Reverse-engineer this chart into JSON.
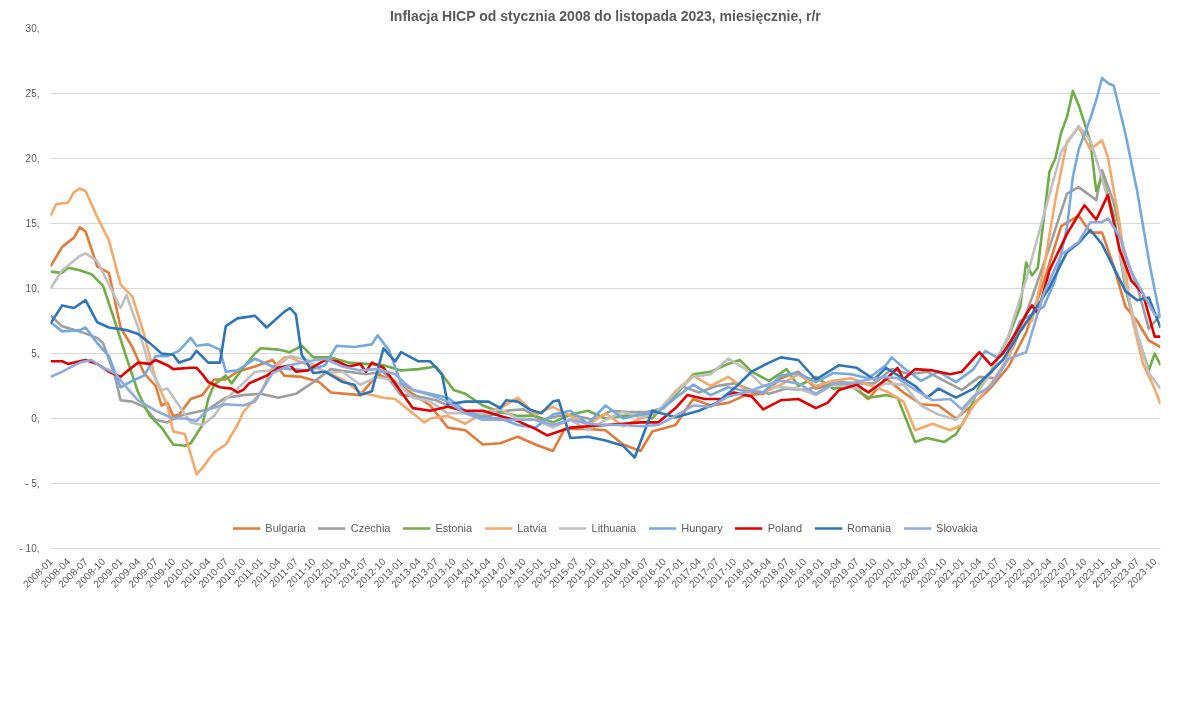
{
  "chart_data": {
    "type": "line",
    "title": "Inflacja HICP od stycznia 2008 do listopada 2023, miesięcznie, r/r",
    "xlim": [
      "2008-01",
      "2023-11"
    ],
    "xticks": [
      "2008-01",
      "2008-04",
      "2008-07",
      "2008-10",
      "2009-01",
      "2009-04",
      "2009-07",
      "2009-10",
      "2010-01",
      "2010-04",
      "2010-07",
      "2010-10",
      "2011-01",
      "2011-04",
      "2011-07",
      "2011-10",
      "2012-01",
      "2012-04",
      "2012-07",
      "2012-10",
      "2013-01",
      "2013-04",
      "2013-07",
      "2013-10",
      "2014-01",
      "2014-04",
      "2014-07",
      "2014-10",
      "2015-01",
      "2015-04",
      "2015-07",
      "2015-10",
      "2016-01",
      "2016-04",
      "2016-07",
      "2016-10",
      "2017-01",
      "2017-04",
      "2017-07",
      "2017-10",
      "2018-01",
      "2018-04",
      "2018-07",
      "2018-10",
      "2019-01",
      "2019-04",
      "2019-07",
      "2019-10",
      "2020-01",
      "2020-04",
      "2020-07",
      "2020-10",
      "2021-01",
      "2021-04",
      "2021-07",
      "2021-10",
      "2022-01",
      "2022-04",
      "2022-07",
      "2022-10",
      "2023-01",
      "2023-04",
      "2023-07",
      "2023-10"
    ],
    "ylim": [
      -10,
      30
    ],
    "yticks": [
      {
        "value": -10,
        "label": "- 10,"
      },
      {
        "value": -5,
        "label": "- 5,"
      },
      {
        "value": 0,
        "label": "0,"
      },
      {
        "value": 5,
        "label": "5,"
      },
      {
        "value": 10,
        "label": "10,"
      },
      {
        "value": 15,
        "label": "15,"
      },
      {
        "value": 20,
        "label": "20,"
      },
      {
        "value": 25,
        "label": "25,"
      },
      {
        "value": 30,
        "label": "30,"
      }
    ],
    "grid": "y",
    "legend": "bottom",
    "marker": "none",
    "line_style": "solid",
    "series": [
      {
        "name": "Bulgaria",
        "color": "#e07b39",
        "x": [
          "2008-01",
          "2008-03",
          "2008-05",
          "2008-06",
          "2008-07",
          "2008-09",
          "2008-11",
          "2009-01",
          "2009-03",
          "2009-05",
          "2009-07",
          "2009-08",
          "2009-09",
          "2009-10",
          "2009-11",
          "2010-01",
          "2010-03",
          "2010-05",
          "2010-07",
          "2010-09",
          "2010-12",
          "2011-03",
          "2011-05",
          "2011-08",
          "2011-11",
          "2012-01",
          "2012-06",
          "2012-09",
          "2012-12",
          "2013-03",
          "2013-06",
          "2013-09",
          "2013-12",
          "2014-03",
          "2014-06",
          "2014-09",
          "2014-12",
          "2015-03",
          "2015-05",
          "2015-09",
          "2015-12",
          "2016-03",
          "2016-06",
          "2016-08",
          "2016-12",
          "2017-03",
          "2017-06",
          "2017-09",
          "2017-12",
          "2018-03",
          "2018-06",
          "2018-09",
          "2018-12",
          "2019-03",
          "2019-06",
          "2019-09",
          "2019-12",
          "2020-03",
          "2020-06",
          "2020-09",
          "2020-12",
          "2021-03",
          "2021-06",
          "2021-09",
          "2021-12",
          "2022-03",
          "2022-06",
          "2022-09",
          "2022-11",
          "2023-01",
          "2023-03",
          "2023-05",
          "2023-07",
          "2023-09",
          "2023-11"
        ],
        "values": [
          11.7,
          13.2,
          13.9,
          14.7,
          14.4,
          11.7,
          11.2,
          7.0,
          5.5,
          3.5,
          2.5,
          1.0,
          1.2,
          0.2,
          0.3,
          1.5,
          1.8,
          3.0,
          3.0,
          3.6,
          4.0,
          4.5,
          3.3,
          3.2,
          2.8,
          2.0,
          1.8,
          3.4,
          2.8,
          1.9,
          1.0,
          -0.7,
          -0.9,
          -2.0,
          -1.9,
          -1.4,
          -2.0,
          -2.5,
          -0.8,
          -0.8,
          -0.9,
          -2.0,
          -2.5,
          -1.0,
          -0.5,
          1.5,
          1.0,
          1.2,
          1.8,
          1.9,
          3.1,
          3.6,
          2.3,
          2.6,
          2.6,
          1.5,
          3.1,
          2.0,
          1.1,
          1.0,
          0.0,
          1.1,
          2.4,
          4.0,
          6.6,
          10.5,
          14.8,
          15.6,
          14.3,
          14.3,
          11.7,
          8.6,
          7.5,
          6.0,
          5.5
        ]
      },
      {
        "name": "Czechia",
        "color": "#9e9e9e",
        "x": [
          "2008-01",
          "2008-03",
          "2008-06",
          "2008-09",
          "2008-10",
          "2008-12",
          "2009-01",
          "2009-03",
          "2009-05",
          "2009-07",
          "2009-09",
          "2009-11",
          "2010-01",
          "2010-04",
          "2010-07",
          "2010-10",
          "2011-01",
          "2011-04",
          "2011-07",
          "2011-10",
          "2012-01",
          "2012-04",
          "2012-07",
          "2012-10",
          "2013-01",
          "2013-04",
          "2013-07",
          "2013-10",
          "2014-01",
          "2014-04",
          "2014-07",
          "2014-10",
          "2015-01",
          "2015-04",
          "2015-07",
          "2015-10",
          "2016-01",
          "2016-04",
          "2016-07",
          "2016-10",
          "2017-01",
          "2017-04",
          "2017-07",
          "2017-10",
          "2018-01",
          "2018-04",
          "2018-07",
          "2018-10",
          "2019-01",
          "2019-04",
          "2019-07",
          "2019-10",
          "2020-01",
          "2020-04",
          "2020-07",
          "2020-10",
          "2021-01",
          "2021-04",
          "2021-07",
          "2021-10",
          "2022-01",
          "2022-04",
          "2022-07",
          "2022-09",
          "2022-12",
          "2023-01",
          "2023-03",
          "2023-05",
          "2023-07",
          "2023-09",
          "2023-11"
        ],
        "values": [
          7.9,
          7.1,
          6.7,
          6.2,
          5.8,
          3.3,
          1.4,
          1.3,
          0.9,
          -0.1,
          -0.3,
          0.2,
          0.4,
          0.7,
          1.6,
          1.8,
          1.9,
          1.6,
          1.9,
          2.8,
          3.8,
          3.6,
          3.4,
          3.6,
          1.8,
          1.7,
          1.4,
          0.8,
          0.3,
          0.2,
          0.6,
          0.7,
          -0.1,
          0.2,
          0.2,
          -0.1,
          0.6,
          0.5,
          0.5,
          0.8,
          2.5,
          2.0,
          2.5,
          2.7,
          2.2,
          1.9,
          2.3,
          2.2,
          2.5,
          2.8,
          2.7,
          2.7,
          3.8,
          3.4,
          3.6,
          2.9,
          2.2,
          3.2,
          3.1,
          5.7,
          9.3,
          13.2,
          17.3,
          17.8,
          16.8,
          19.1,
          16.6,
          12.4,
          10.2,
          6.9,
          8.0
        ]
      },
      {
        "name": "Estonia",
        "color": "#70ad47",
        "x": [
          "2008-01",
          "2008-03",
          "2008-04",
          "2008-06",
          "2008-08",
          "2008-10",
          "2008-12",
          "2009-02",
          "2009-04",
          "2009-06",
          "2009-08",
          "2009-10",
          "2009-12",
          "2010-01",
          "2010-03",
          "2010-04",
          "2010-05",
          "2010-07",
          "2010-08",
          "2010-10",
          "2010-12",
          "2011-01",
          "2011-04",
          "2011-06",
          "2011-08",
          "2011-10",
          "2012-01",
          "2012-04",
          "2012-07",
          "2012-10",
          "2013-01",
          "2013-04",
          "2013-07",
          "2013-10",
          "2013-12",
          "2014-03",
          "2014-06",
          "2014-09",
          "2014-12",
          "2015-03",
          "2015-06",
          "2015-09",
          "2015-12",
          "2016-03",
          "2016-06",
          "2016-08",
          "2016-10",
          "2016-12",
          "2017-03",
          "2017-06",
          "2017-09",
          "2017-11",
          "2018-01",
          "2018-04",
          "2018-07",
          "2018-09",
          "2018-12",
          "2019-03",
          "2019-06",
          "2019-09",
          "2019-12",
          "2020-02",
          "2020-05",
          "2020-07",
          "2020-10",
          "2020-12",
          "2021-02",
          "2021-04",
          "2021-06",
          "2021-09",
          "2021-11",
          "2021-12",
          "2022-01",
          "2022-02",
          "2022-04",
          "2022-05",
          "2022-06",
          "2022-07",
          "2022-08",
          "2022-09",
          "2022-11",
          "2022-12",
          "2023-01",
          "2023-03",
          "2023-05",
          "2023-07",
          "2023-09",
          "2023-10",
          "2023-11"
        ],
        "values": [
          11.3,
          11.2,
          11.6,
          11.4,
          11.1,
          10.2,
          7.5,
          4.7,
          2.0,
          0.2,
          -0.7,
          -2.0,
          -2.1,
          -1.9,
          -0.5,
          1.5,
          2.6,
          3.3,
          2.7,
          3.9,
          5.0,
          5.4,
          5.3,
          5.1,
          5.6,
          4.7,
          4.7,
          4.3,
          4.2,
          4.1,
          3.7,
          3.8,
          4.0,
          2.2,
          1.9,
          1.0,
          0.5,
          0.2,
          0.2,
          -0.3,
          0.3,
          0.6,
          0.0,
          0.2,
          0.3,
          0.0,
          1.0,
          1.8,
          3.4,
          3.6,
          4.2,
          4.5,
          3.6,
          2.9,
          3.8,
          2.5,
          3.2,
          2.3,
          2.5,
          1.6,
          1.8,
          1.6,
          -1.8,
          -1.5,
          -1.8,
          -1.2,
          0.3,
          2.5,
          3.6,
          6.3,
          8.6,
          12.0,
          11.0,
          11.6,
          19.0,
          20.0,
          22.0,
          23.2,
          25.2,
          24.1,
          21.3,
          17.5,
          18.6,
          15.6,
          10.0,
          6.5,
          3.7,
          5.0,
          4.1
        ]
      },
      {
        "name": "Latvia",
        "color": "#f4a86a",
        "x": [
          "2008-01",
          "2008-02",
          "2008-04",
          "2008-05",
          "2008-06",
          "2008-07",
          "2008-09",
          "2008-11",
          "2009-01",
          "2009-03",
          "2009-05",
          "2009-07",
          "2009-09",
          "2009-10",
          "2009-12",
          "2010-02",
          "2010-03",
          "2010-05",
          "2010-07",
          "2010-09",
          "2010-10",
          "2011-01",
          "2011-03",
          "2011-05",
          "2011-06",
          "2011-08",
          "2011-10",
          "2011-12",
          "2012-03",
          "2012-06",
          "2012-08",
          "2012-10",
          "2012-12",
          "2013-03",
          "2013-05",
          "2013-06",
          "2013-09",
          "2013-12",
          "2014-03",
          "2014-06",
          "2014-09",
          "2014-12",
          "2015-03",
          "2015-06",
          "2015-09",
          "2015-12",
          "2016-03",
          "2016-06",
          "2016-09",
          "2016-12",
          "2017-03",
          "2017-06",
          "2017-09",
          "2017-12",
          "2018-03",
          "2018-06",
          "2018-09",
          "2018-12",
          "2019-03",
          "2019-06",
          "2019-09",
          "2019-12",
          "2020-03",
          "2020-05",
          "2020-08",
          "2020-11",
          "2021-01",
          "2021-03",
          "2021-06",
          "2021-09",
          "2021-11",
          "2022-01",
          "2022-03",
          "2022-05",
          "2022-07",
          "2022-09",
          "2022-11",
          "2023-01",
          "2023-02",
          "2023-04",
          "2023-06",
          "2023-08",
          "2023-10",
          "2023-11"
        ],
        "values": [
          15.6,
          16.5,
          16.6,
          17.4,
          17.7,
          17.5,
          15.5,
          13.7,
          10.3,
          9.4,
          6.5,
          3.0,
          1.0,
          -1.0,
          -1.2,
          -4.3,
          -3.8,
          -2.6,
          -2.0,
          -0.5,
          0.5,
          2.0,
          3.9,
          4.7,
          4.7,
          4.3,
          4.0,
          3.6,
          3.0,
          2.0,
          1.8,
          1.6,
          1.5,
          0.4,
          -0.3,
          0.0,
          0.2,
          -0.4,
          0.4,
          0.8,
          1.6,
          0.3,
          0.9,
          0.2,
          -0.5,
          0.4,
          -0.6,
          0.0,
          0.5,
          2.1,
          3.3,
          2.5,
          3.2,
          2.2,
          2.0,
          2.6,
          3.4,
          2.5,
          2.9,
          3.1,
          2.6,
          2.1,
          1.3,
          -0.9,
          -0.4,
          -0.9,
          -0.5,
          1.0,
          2.7,
          4.7,
          7.4,
          7.5,
          11.5,
          16.8,
          21.3,
          22.4,
          20.7,
          21.4,
          20.1,
          15.0,
          8.0,
          4.2,
          2.3,
          1.1
        ]
      },
      {
        "name": "Lithuania",
        "color": "#c0c0c0",
        "x": [
          "2008-01",
          "2008-03",
          "2008-06",
          "2008-07",
          "2008-09",
          "2008-11",
          "2009-01",
          "2009-02",
          "2009-04",
          "2009-06",
          "2009-08",
          "2009-09",
          "2009-11",
          "2010-01",
          "2010-03",
          "2010-05",
          "2010-07",
          "2010-09",
          "2010-12",
          "2011-03",
          "2011-06",
          "2011-09",
          "2011-12",
          "2012-03",
          "2012-06",
          "2012-09",
          "2012-12",
          "2013-03",
          "2013-06",
          "2013-09",
          "2013-12",
          "2014-03",
          "2014-06",
          "2014-09",
          "2014-12",
          "2015-03",
          "2015-06",
          "2015-09",
          "2015-12",
          "2016-03",
          "2016-06",
          "2016-09",
          "2016-12",
          "2017-03",
          "2017-06",
          "2017-09",
          "2017-12",
          "2018-03",
          "2018-06",
          "2018-09",
          "2018-12",
          "2019-03",
          "2019-06",
          "2019-09",
          "2019-12",
          "2020-03",
          "2020-06",
          "2020-09",
          "2020-12",
          "2021-03",
          "2021-06",
          "2021-09",
          "2021-12",
          "2022-03",
          "2022-06",
          "2022-09",
          "2022-11",
          "2023-01",
          "2023-03",
          "2023-05",
          "2023-07",
          "2023-09",
          "2023-11"
        ],
        "values": [
          10.0,
          11.4,
          12.5,
          12.7,
          12.1,
          10.3,
          8.5,
          9.5,
          7.0,
          3.9,
          2.2,
          2.3,
          1.0,
          -0.3,
          -0.5,
          0.2,
          1.5,
          2.3,
          3.6,
          3.7,
          4.8,
          4.5,
          3.5,
          3.6,
          2.6,
          3.2,
          2.9,
          1.6,
          1.3,
          0.4,
          0.4,
          0.4,
          0.7,
          0.0,
          -0.1,
          -0.7,
          -0.1,
          -0.9,
          -0.1,
          0.5,
          0.1,
          0.6,
          2.0,
          3.2,
          3.4,
          4.6,
          3.8,
          2.5,
          2.4,
          2.3,
          1.8,
          2.6,
          2.4,
          2.1,
          2.7,
          2.6,
          1.0,
          0.3,
          -0.1,
          1.6,
          3.5,
          6.4,
          10.7,
          15.6,
          20.5,
          22.5,
          21.4,
          18.5,
          15.2,
          10.4,
          6.6,
          3.5,
          2.3
        ]
      },
      {
        "name": "Hungary",
        "color": "#75a9db",
        "x": [
          "2008-01",
          "2008-03",
          "2008-06",
          "2008-07",
          "2008-09",
          "2008-11",
          "2009-01",
          "2009-03",
          "2009-05",
          "2009-07",
          "2009-09",
          "2009-11",
          "2010-01",
          "2010-02",
          "2010-04",
          "2010-06",
          "2010-07",
          "2010-09",
          "2010-12",
          "2011-03",
          "2011-06",
          "2011-09",
          "2011-12",
          "2012-02",
          "2012-05",
          "2012-08",
          "2012-09",
          "2012-11",
          "2013-01",
          "2013-03",
          "2013-06",
          "2013-09",
          "2013-12",
          "2014-03",
          "2014-06",
          "2014-09",
          "2014-12",
          "2015-03",
          "2015-06",
          "2015-09",
          "2015-12",
          "2016-03",
          "2016-06",
          "2016-09",
          "2016-12",
          "2017-03",
          "2017-06",
          "2017-09",
          "2017-12",
          "2018-03",
          "2018-06",
          "2018-09",
          "2018-12",
          "2019-03",
          "2019-06",
          "2019-09",
          "2019-12",
          "2020-01",
          "2020-03",
          "2020-06",
          "2020-09",
          "2020-12",
          "2021-03",
          "2021-05",
          "2021-07",
          "2021-09",
          "2021-11",
          "2022-01",
          "2022-03",
          "2022-05",
          "2022-07",
          "2022-08",
          "2022-09",
          "2022-11",
          "2022-12",
          "2023-01",
          "2023-02",
          "2023-03",
          "2023-05",
          "2023-07",
          "2023-09",
          "2023-10",
          "2023-11"
        ],
        "values": [
          7.4,
          6.7,
          6.8,
          7.0,
          5.8,
          4.8,
          2.4,
          2.9,
          3.3,
          4.8,
          4.8,
          5.2,
          6.2,
          5.6,
          5.7,
          5.3,
          3.6,
          3.7,
          4.6,
          4.0,
          3.8,
          3.7,
          4.1,
          5.6,
          5.5,
          5.7,
          6.4,
          5.2,
          2.7,
          2.2,
          1.9,
          1.6,
          0.6,
          0.1,
          0.0,
          -0.5,
          -0.7,
          0.3,
          0.6,
          -0.4,
          1.0,
          0.0,
          0.3,
          0.5,
          1.6,
          2.6,
          1.8,
          2.4,
          2.1,
          2.0,
          3.3,
          3.5,
          2.8,
          3.5,
          3.4,
          3.1,
          4.1,
          4.7,
          3.9,
          2.9,
          3.6,
          2.8,
          3.8,
          5.2,
          4.7,
          5.5,
          7.5,
          8.0,
          8.6,
          10.7,
          14.7,
          18.6,
          20.7,
          23.1,
          24.5,
          26.2,
          25.8,
          25.6,
          21.9,
          17.5,
          12.2,
          9.9,
          7.7
        ]
      },
      {
        "name": "Poland",
        "color": "#e00000",
        "x": [
          "2008-01",
          "2008-03",
          "2008-04",
          "2008-06",
          "2008-07",
          "2008-09",
          "2008-11",
          "2009-01",
          "2009-02",
          "2009-04",
          "2009-06",
          "2009-07",
          "2009-09",
          "2009-10",
          "2010-01",
          "2010-02",
          "2010-03",
          "2010-04",
          "2010-06",
          "2010-08",
          "2010-09",
          "2010-10",
          "2010-11",
          "2010-12",
          "2011-02",
          "2011-04",
          "2011-06",
          "2011-07",
          "2011-09",
          "2011-12",
          "2012-02",
          "2012-04",
          "2012-06",
          "2012-07",
          "2012-08",
          "2012-10",
          "2012-12",
          "2013-03",
          "2013-06",
          "2013-09",
          "2013-12",
          "2014-03",
          "2014-06",
          "2014-09",
          "2014-12",
          "2015-02",
          "2015-06",
          "2015-09",
          "2015-12",
          "2016-03",
          "2016-06",
          "2016-09",
          "2016-12",
          "2017-02",
          "2017-05",
          "2017-08",
          "2017-10",
          "2018-01",
          "2018-03",
          "2018-06",
          "2018-09",
          "2018-12",
          "2019-02",
          "2019-04",
          "2019-07",
          "2019-09",
          "2019-12",
          "2020-02",
          "2020-03",
          "2020-05",
          "2020-08",
          "2020-11",
          "2021-01",
          "2021-04",
          "2021-06",
          "2021-08",
          "2021-10",
          "2021-12",
          "2022-01",
          "2022-02",
          "2022-04",
          "2022-07",
          "2022-09",
          "2022-10",
          "2022-12",
          "2023-02",
          "2023-04",
          "2023-06",
          "2023-08",
          "2023-10",
          "2023-11"
        ],
        "values": [
          4.4,
          4.4,
          4.2,
          4.4,
          4.5,
          4.2,
          3.6,
          3.2,
          3.6,
          4.3,
          4.2,
          4.5,
          4.1,
          3.8,
          3.9,
          3.9,
          3.4,
          2.8,
          2.4,
          2.3,
          2.0,
          2.2,
          2.7,
          2.9,
          3.3,
          3.9,
          4.1,
          3.6,
          3.7,
          4.5,
          4.4,
          4.0,
          4.2,
          3.6,
          4.3,
          3.9,
          2.7,
          0.8,
          0.6,
          0.9,
          0.6,
          0.6,
          0.2,
          -0.2,
          -0.8,
          -1.3,
          -0.7,
          -0.6,
          -0.5,
          -0.4,
          -0.3,
          -0.3,
          0.8,
          1.8,
          1.5,
          1.5,
          2.0,
          1.7,
          0.7,
          1.4,
          1.5,
          0.8,
          1.2,
          2.2,
          2.6,
          2.0,
          3.0,
          3.9,
          3.0,
          3.8,
          3.7,
          3.4,
          3.6,
          5.1,
          4.1,
          5.0,
          6.4,
          8.0,
          8.7,
          8.1,
          11.4,
          14.2,
          15.7,
          16.4,
          15.3,
          17.2,
          13.0,
          10.6,
          9.6,
          6.3,
          6.3
        ]
      },
      {
        "name": "Romania",
        "color": "#2e75b6",
        "x": [
          "2008-01",
          "2008-03",
          "2008-05",
          "2008-07",
          "2008-09",
          "2008-11",
          "2009-02",
          "2009-04",
          "2009-06",
          "2009-08",
          "2009-10",
          "2009-11",
          "2010-01",
          "2010-02",
          "2010-04",
          "2010-06",
          "2010-07",
          "2010-09",
          "2010-12",
          "2011-02",
          "2011-05",
          "2011-06",
          "2011-07",
          "2011-08",
          "2011-10",
          "2011-12",
          "2012-03",
          "2012-05",
          "2012-06",
          "2012-08",
          "2012-10",
          "2012-12",
          "2013-01",
          "2013-04",
          "2013-06",
          "2013-08",
          "2013-09",
          "2013-12",
          "2014-04",
          "2014-06",
          "2014-07",
          "2014-09",
          "2014-11",
          "2015-01",
          "2015-03",
          "2015-04",
          "2015-06",
          "2015-09",
          "2015-12",
          "2016-03",
          "2016-05",
          "2016-08",
          "2016-12",
          "2017-04",
          "2017-07",
          "2017-10",
          "2018-01",
          "2018-04",
          "2018-06",
          "2018-09",
          "2018-12",
          "2019-04",
          "2019-07",
          "2019-10",
          "2019-12",
          "2020-05",
          "2020-07",
          "2020-09",
          "2020-12",
          "2021-03",
          "2021-06",
          "2021-08",
          "2021-11",
          "2022-01",
          "2022-04",
          "2022-07",
          "2022-09",
          "2022-11",
          "2023-01",
          "2023-03",
          "2023-05",
          "2023-07",
          "2023-09",
          "2023-11"
        ],
        "values": [
          7.3,
          8.7,
          8.5,
          9.1,
          7.4,
          7.0,
          6.8,
          6.5,
          5.8,
          5.0,
          4.9,
          4.3,
          4.6,
          5.2,
          4.3,
          4.3,
          7.1,
          7.7,
          7.9,
          7.0,
          8.2,
          8.5,
          8.0,
          4.9,
          3.5,
          3.6,
          2.8,
          2.6,
          1.8,
          2.1,
          5.4,
          4.4,
          5.1,
          4.4,
          4.4,
          3.4,
          1.1,
          1.3,
          1.3,
          0.8,
          1.4,
          1.3,
          0.7,
          0.4,
          1.3,
          1.4,
          -1.5,
          -1.4,
          -1.7,
          -2.1,
          -3.0,
          0.6,
          0.1,
          0.6,
          1.2,
          2.3,
          3.6,
          4.3,
          4.7,
          4.5,
          3.0,
          4.1,
          3.9,
          3.0,
          3.9,
          2.5,
          1.6,
          2.3,
          1.6,
          2.3,
          3.6,
          4.5,
          6.7,
          8.0,
          10.1,
          12.8,
          13.5,
          14.5,
          13.4,
          11.6,
          9.8,
          9.1,
          9.3,
          7.0
        ]
      },
      {
        "name": "Slovakia",
        "color": "#8faadc",
        "x": [
          "2008-01",
          "2008-03",
          "2008-06",
          "2008-08",
          "2008-10",
          "2008-12",
          "2009-02",
          "2009-04",
          "2009-07",
          "2009-10",
          "2009-12",
          "2010-02",
          "2010-04",
          "2010-07",
          "2010-10",
          "2010-12",
          "2011-03",
          "2011-06",
          "2011-09",
          "2011-12",
          "2012-03",
          "2012-06",
          "2012-09",
          "2012-12",
          "2013-03",
          "2013-06",
          "2013-09",
          "2013-12",
          "2014-03",
          "2014-06",
          "2014-09",
          "2014-12",
          "2015-03",
          "2015-06",
          "2015-09",
          "2015-12",
          "2016-03",
          "2016-06",
          "2016-09",
          "2016-12",
          "2017-03",
          "2017-06",
          "2017-09",
          "2017-12",
          "2018-03",
          "2018-06",
          "2018-09",
          "2018-12",
          "2019-03",
          "2019-06",
          "2019-09",
          "2019-12",
          "2020-02",
          "2020-05",
          "2020-08",
          "2020-11",
          "2021-01",
          "2021-03",
          "2021-06",
          "2021-09",
          "2021-12",
          "2022-03",
          "2022-06",
          "2022-09",
          "2022-11",
          "2023-01",
          "2023-02",
          "2023-04",
          "2023-06",
          "2023-08",
          "2023-10",
          "2023-11"
        ],
        "values": [
          3.2,
          3.6,
          4.3,
          4.5,
          3.9,
          3.5,
          2.4,
          1.4,
          0.6,
          0.0,
          0.0,
          -0.2,
          0.7,
          1.1,
          1.0,
          1.3,
          3.5,
          4.1,
          4.4,
          4.6,
          4.0,
          3.7,
          3.8,
          3.4,
          2.2,
          1.8,
          1.3,
          0.4,
          -0.1,
          -0.1,
          -0.1,
          -0.1,
          -0.5,
          -0.1,
          -0.4,
          -0.5,
          -0.5,
          -0.6,
          -0.5,
          0.2,
          1.0,
          0.9,
          1.7,
          2.0,
          2.5,
          2.9,
          2.7,
          1.9,
          2.7,
          2.7,
          3.0,
          3.2,
          3.1,
          2.2,
          1.4,
          1.5,
          0.7,
          1.7,
          2.5,
          4.6,
          5.1,
          9.6,
          12.6,
          13.6,
          15.1,
          15.1,
          15.4,
          14.0,
          11.3,
          9.6,
          8.0,
          7.9
        ]
      }
    ]
  }
}
